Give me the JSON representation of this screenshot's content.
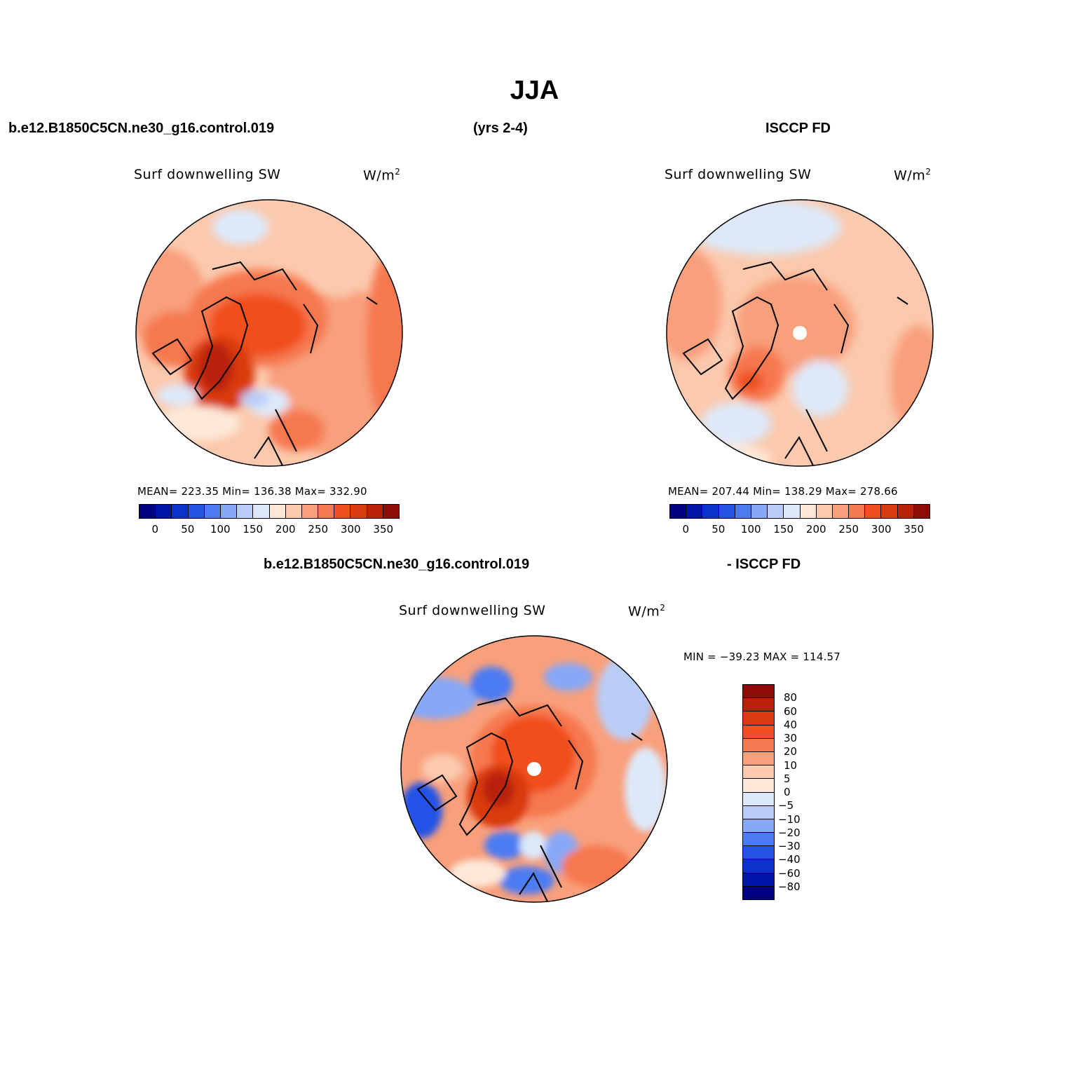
{
  "figure": {
    "title": "JJA",
    "case_name": "b.e12.B1850C5CN.ne30_g16.control.019",
    "years": "(yrs 2-4)",
    "obs_name": "ISCCP FD",
    "diff_left": "b.e12.B1850C5CN.ne30_g16.control.019",
    "diff_right": "- ISCCP FD"
  },
  "panels": {
    "model": {
      "variable": "Surf downwelling SW",
      "units": "W/m",
      "units_sup": "2",
      "stats": "MEAN= 223.35   Min= 136.38   Max= 332.90"
    },
    "obs": {
      "variable": "Surf downwelling SW",
      "units": "W/m",
      "units_sup": "2",
      "stats": "MEAN= 207.44   Min= 138.29   Max= 278.66"
    },
    "diff": {
      "variable": "Surf downwelling SW",
      "units": "W/m",
      "units_sup": "2",
      "stats": "MIN = −39.23 MAX = 114.57"
    }
  },
  "colorbar_abs": {
    "colors": [
      "#000080",
      "#0015a8",
      "#0b33cc",
      "#2453e6",
      "#4c7bf2",
      "#86a8f7",
      "#b9cdf7",
      "#dde9fa",
      "#fde8d8",
      "#fbc9ad",
      "#f89f7b",
      "#f67850",
      "#f0501f",
      "#d93a10",
      "#b8200a",
      "#8c0b06"
    ],
    "labels": [
      "0",
      "50",
      "100",
      "150",
      "200",
      "250",
      "300",
      "350"
    ]
  },
  "colorbar_diff": {
    "colors_top_to_bottom": [
      "#8c0b06",
      "#b8200a",
      "#d93a10",
      "#f0501f",
      "#f67850",
      "#f89f7b",
      "#fbc9ad",
      "#fde8d8",
      "#dde9fa",
      "#b9cdf7",
      "#86a8f7",
      "#4c7bf2",
      "#2453e6",
      "#0b33cc",
      "#0015a8",
      "#000080"
    ],
    "labels": [
      "80",
      "60",
      "40",
      "30",
      "20",
      "10",
      "5",
      "0",
      "−5",
      "−10",
      "−20",
      "−30",
      "−40",
      "−60",
      "−80"
    ]
  }
}
